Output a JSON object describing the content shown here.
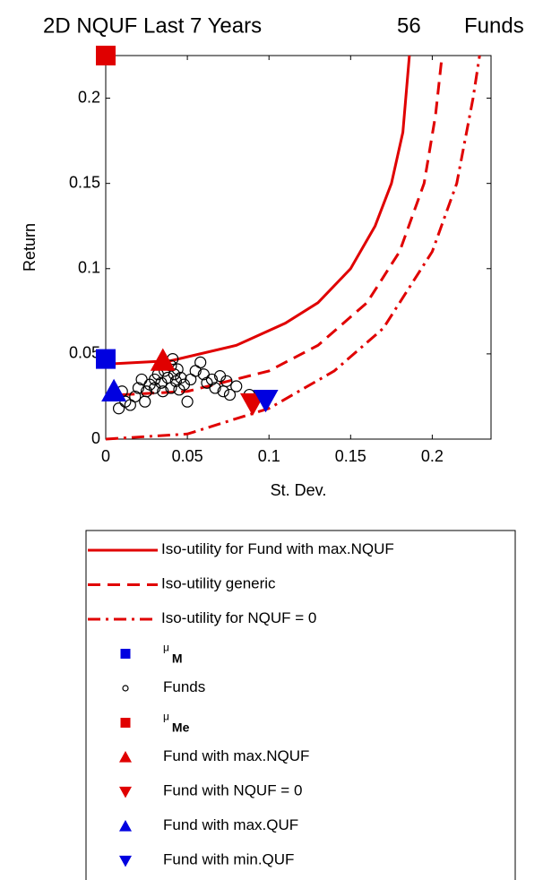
{
  "chart_data": {
    "type": "scatter",
    "title": "2D NQUF Last 7 Years",
    "fund_count": 56,
    "fund_count_label": "Funds",
    "x_label": "St. Dev.",
    "y_label": "Return",
    "xlim": [
      0,
      0.236
    ],
    "ylim": [
      0,
      0.225
    ],
    "xticks": [
      0,
      0.05,
      0.1,
      0.15,
      0.2
    ],
    "yticks": [
      0,
      0.05,
      0.1,
      0.15,
      0.2
    ],
    "grid": false,
    "legend": "below",
    "series": [
      {
        "name": "Iso-utility for Fund with max.NQUF",
        "color": "#e00000",
        "style": "solid",
        "x": [
          0,
          0.04,
          0.08,
          0.11,
          0.13,
          0.15,
          0.165,
          0.175,
          0.182,
          0.186
        ],
        "y": [
          0.044,
          0.046,
          0.055,
          0.068,
          0.08,
          0.1,
          0.125,
          0.15,
          0.18,
          0.225
        ]
      },
      {
        "name": "Iso-utility generic",
        "color": "#e00000",
        "style": "dashed",
        "x": [
          0.01,
          0.05,
          0.1,
          0.13,
          0.16,
          0.18,
          0.195,
          0.202,
          0.206
        ],
        "y": [
          0.026,
          0.028,
          0.04,
          0.055,
          0.08,
          0.11,
          0.15,
          0.19,
          0.225
        ]
      },
      {
        "name": "Iso-utility for NQUF = 0",
        "color": "#e00000",
        "style": "dashdot",
        "x": [
          0,
          0.05,
          0.1,
          0.14,
          0.17,
          0.2,
          0.215,
          0.225,
          0.229
        ],
        "y": [
          0,
          0.003,
          0.018,
          0.04,
          0.065,
          0.11,
          0.15,
          0.2,
          0.225
        ]
      },
      {
        "name": "μ",
        "name_subscript": "M",
        "color": "#0000e0",
        "style": "square",
        "x": [
          0
        ],
        "y": [
          0.047
        ]
      },
      {
        "name": "Funds",
        "color": "#000000",
        "style": "circle",
        "x": [
          0.008,
          0.012,
          0.015,
          0.018,
          0.02,
          0.022,
          0.025,
          0.027,
          0.03,
          0.03,
          0.032,
          0.034,
          0.035,
          0.036,
          0.038,
          0.04,
          0.04,
          0.041,
          0.042,
          0.043,
          0.044,
          0.045,
          0.046,
          0.048,
          0.05,
          0.052,
          0.055,
          0.058,
          0.06,
          0.062,
          0.065,
          0.067,
          0.07,
          0.072,
          0.074,
          0.076,
          0.08,
          0.088,
          0.01,
          0.024
        ],
        "y": [
          0.018,
          0.022,
          0.02,
          0.025,
          0.03,
          0.035,
          0.028,
          0.032,
          0.035,
          0.03,
          0.038,
          0.033,
          0.028,
          0.04,
          0.036,
          0.043,
          0.03,
          0.047,
          0.038,
          0.034,
          0.041,
          0.029,
          0.036,
          0.032,
          0.022,
          0.035,
          0.04,
          0.045,
          0.038,
          0.033,
          0.035,
          0.03,
          0.037,
          0.028,
          0.034,
          0.026,
          0.031,
          0.026,
          0.028,
          0.022
        ]
      },
      {
        "name": "μ",
        "name_subscript": "Me",
        "color": "#e00000",
        "style": "square",
        "x": [
          0
        ],
        "y": [
          0.225
        ]
      },
      {
        "name": "Fund with max.NQUF",
        "color": "#e00000",
        "style": "triangle-up",
        "x": [
          0.035
        ],
        "y": [
          0.046
        ]
      },
      {
        "name": "Fund with NQUF = 0",
        "color": "#e00000",
        "style": "triangle-down",
        "x": [
          0.09
        ],
        "y": [
          0.021
        ]
      },
      {
        "name": "Fund with max.QUF",
        "color": "#0000e0",
        "style": "triangle-up",
        "x": [
          0.005
        ],
        "y": [
          0.028
        ]
      },
      {
        "name": "Fund with min.QUF",
        "color": "#0000e0",
        "style": "triangle-down",
        "x": [
          0.098
        ],
        "y": [
          0.023
        ]
      }
    ]
  }
}
